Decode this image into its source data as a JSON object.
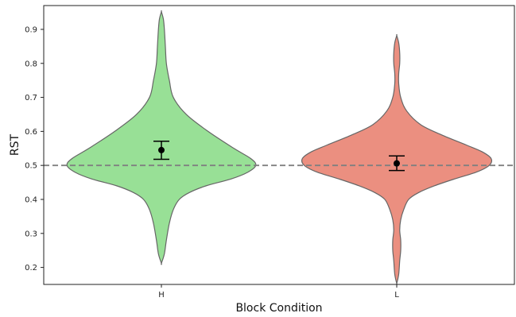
{
  "chart_data": {
    "type": "violin",
    "xlabel": "Block Condition",
    "ylabel": "RST",
    "ylim": [
      0.15,
      0.97
    ],
    "yticks": [
      0.2,
      0.3,
      0.4,
      0.5,
      0.6,
      0.7,
      0.8,
      0.9
    ],
    "yticklabels": [
      "0.2",
      "0.3",
      "0.4",
      "0.5",
      "0.6",
      "0.7",
      "0.8",
      "0.9"
    ],
    "categories": [
      "H",
      "L"
    ],
    "reference_line": {
      "y": 0.5,
      "style": "dashed",
      "color": "#808080"
    },
    "grid": false,
    "violins": [
      {
        "category": "H",
        "color": "#98e096",
        "mean": 0.545,
        "ci": [
          0.518,
          0.571
        ],
        "density_profile": [
          [
            0.952,
            0.0
          ],
          [
            0.93,
            0.02
          ],
          [
            0.9,
            0.03
          ],
          [
            0.85,
            0.04
          ],
          [
            0.8,
            0.05
          ],
          [
            0.75,
            0.08
          ],
          [
            0.7,
            0.12
          ],
          [
            0.65,
            0.25
          ],
          [
            0.6,
            0.47
          ],
          [
            0.55,
            0.73
          ],
          [
            0.52,
            0.9
          ],
          [
            0.5,
            0.95
          ],
          [
            0.48,
            0.87
          ],
          [
            0.46,
            0.7
          ],
          [
            0.44,
            0.45
          ],
          [
            0.42,
            0.28
          ],
          [
            0.4,
            0.18
          ],
          [
            0.37,
            0.12
          ],
          [
            0.33,
            0.08
          ],
          [
            0.28,
            0.05
          ],
          [
            0.24,
            0.03
          ],
          [
            0.212,
            0.0
          ]
        ]
      },
      {
        "category": "L",
        "color": "#eb8f80",
        "mean": 0.506,
        "ci": [
          0.485,
          0.528
        ],
        "density_profile": [
          [
            0.882,
            0.0
          ],
          [
            0.86,
            0.02
          ],
          [
            0.83,
            0.03
          ],
          [
            0.8,
            0.03
          ],
          [
            0.77,
            0.02
          ],
          [
            0.74,
            0.02
          ],
          [
            0.7,
            0.04
          ],
          [
            0.66,
            0.1
          ],
          [
            0.62,
            0.24
          ],
          [
            0.59,
            0.45
          ],
          [
            0.56,
            0.7
          ],
          [
            0.54,
            0.86
          ],
          [
            0.52,
            0.95
          ],
          [
            0.5,
            0.93
          ],
          [
            0.48,
            0.8
          ],
          [
            0.46,
            0.58
          ],
          [
            0.44,
            0.38
          ],
          [
            0.42,
            0.22
          ],
          [
            0.4,
            0.12
          ],
          [
            0.37,
            0.07
          ],
          [
            0.34,
            0.04
          ],
          [
            0.31,
            0.03
          ],
          [
            0.28,
            0.04
          ],
          [
            0.25,
            0.04
          ],
          [
            0.22,
            0.03
          ],
          [
            0.18,
            0.02
          ],
          [
            0.152,
            0.0
          ]
        ]
      }
    ]
  }
}
